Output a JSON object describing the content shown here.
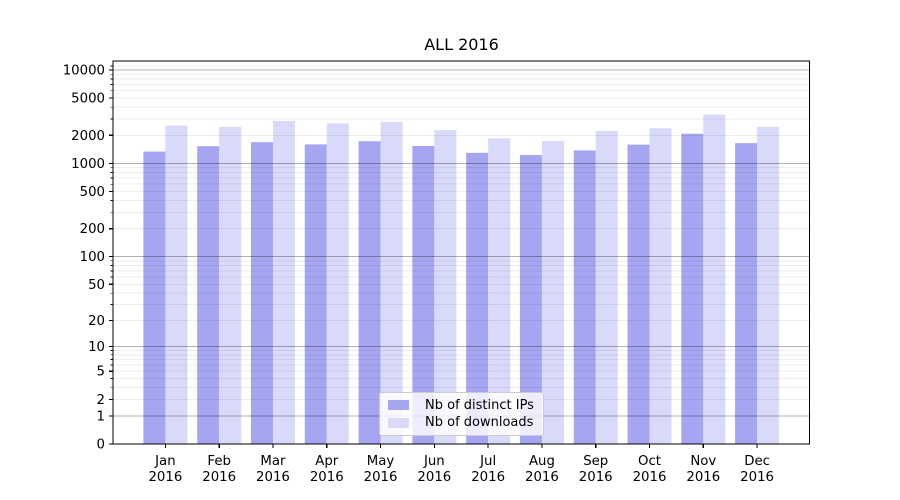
{
  "chart_data": {
    "type": "bar",
    "title": "ALL 2016",
    "categories": [
      "Jan 2016",
      "Feb 2016",
      "Mar 2016",
      "Apr 2016",
      "May 2016",
      "Jun 2016",
      "Jul 2016",
      "Aug 2016",
      "Sep 2016",
      "Oct 2016",
      "Nov 2016",
      "Dec 2016"
    ],
    "series": [
      {
        "name": "Nb of distinct IPs",
        "color": "#a5a5f2",
        "values": [
          1340,
          1530,
          1690,
          1600,
          1730,
          1540,
          1300,
          1230,
          1380,
          1590,
          2080,
          1650
        ]
      },
      {
        "name": "Nb of downloads",
        "color": "#d9d9f9",
        "values": [
          2540,
          2460,
          2850,
          2690,
          2780,
          2270,
          1860,
          1740,
          2230,
          2380,
          3330,
          2460
        ]
      }
    ],
    "yscale": "log1p",
    "ytick_labels": [
      "0",
      "1",
      "2",
      "5",
      "10",
      "20",
      "50",
      "100",
      "200",
      "500",
      "1000",
      "2000",
      "5000",
      "10000"
    ],
    "ylim": [
      0,
      12500
    ],
    "xlabel": "",
    "ylabel": "",
    "grid": "on",
    "legend_position": "lower center"
  },
  "colors": {
    "grid_major": "#b0b0b0",
    "grid_minor": "#ebebeb",
    "axis": "#000000",
    "background": "#ffffff"
  }
}
